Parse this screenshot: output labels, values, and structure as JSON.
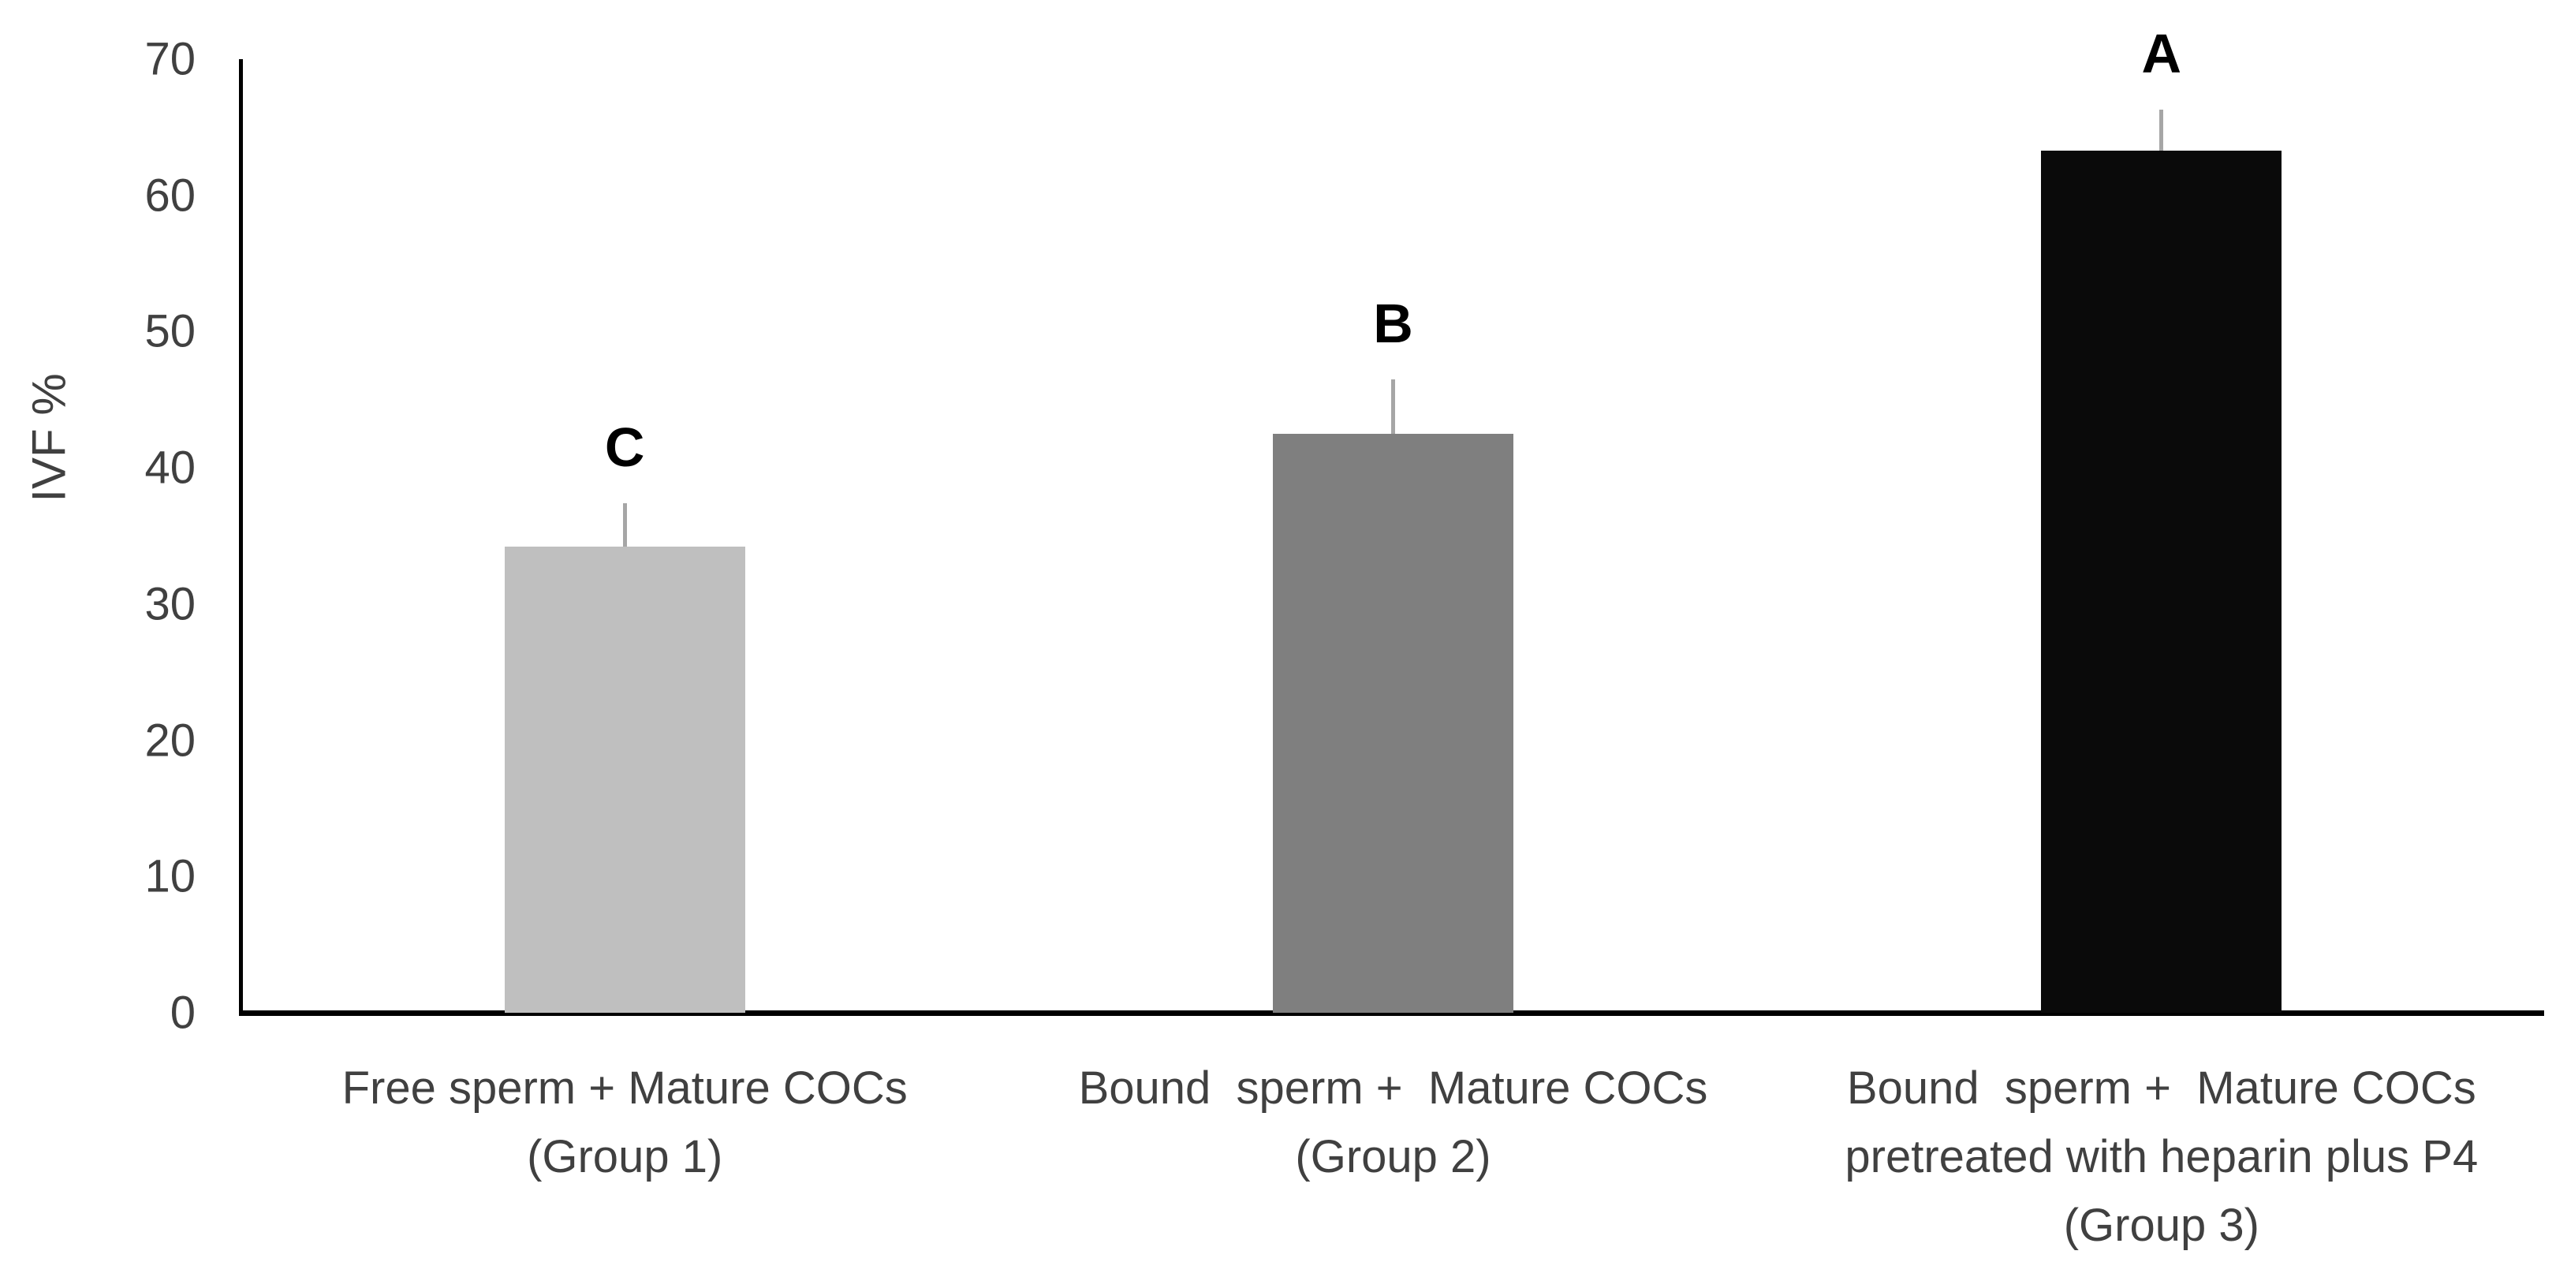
{
  "page": {
    "background": "#ffffff"
  },
  "chart_data": {
    "type": "bar",
    "title": "",
    "xlabel": "",
    "ylabel": "IVF %",
    "ylim": [
      0,
      70
    ],
    "yticks": [
      0,
      10,
      20,
      30,
      40,
      50,
      60,
      70
    ],
    "grid": false,
    "legend": false,
    "axis_color": "#000000",
    "text_color": "#404040",
    "error_bar_color": "#a6a6a6",
    "categories": [
      "Free sperm + Mature COCs (Group 1)",
      "Bound sperm + Mature COCs (Group 2)",
      "Bound sperm + Mature COCs pretreated with heparin plus P4 (Group 3)"
    ],
    "values": [
      34.2,
      42.5,
      63.3
    ],
    "errors_plus": [
      3.2,
      4.0,
      3.0
    ],
    "significance_letters": [
      "C",
      "B",
      "A"
    ],
    "bar_colors": [
      "#bfbfbf",
      "#7f7f7f",
      "#0a0a0a"
    ],
    "groups": [
      {
        "letter": "C",
        "value": 34.2,
        "error_plus": 3.2,
        "color": "#bfbfbf",
        "label_lines": [
          "Free sperm + Mature COCs",
          "(Group 1)"
        ]
      },
      {
        "letter": "B",
        "value": 42.5,
        "error_plus": 4.0,
        "color": "#7f7f7f",
        "label_lines": [
          "Bound  sperm +  Mature COCs",
          "(Group 2)"
        ]
      },
      {
        "letter": "A",
        "value": 63.3,
        "error_plus": 3.0,
        "color": "#0a0a0a",
        "label_lines": [
          "Bound  sperm +  Mature COCs",
          "pretreated with heparin plus P4",
          "(Group 3)"
        ]
      }
    ]
  }
}
